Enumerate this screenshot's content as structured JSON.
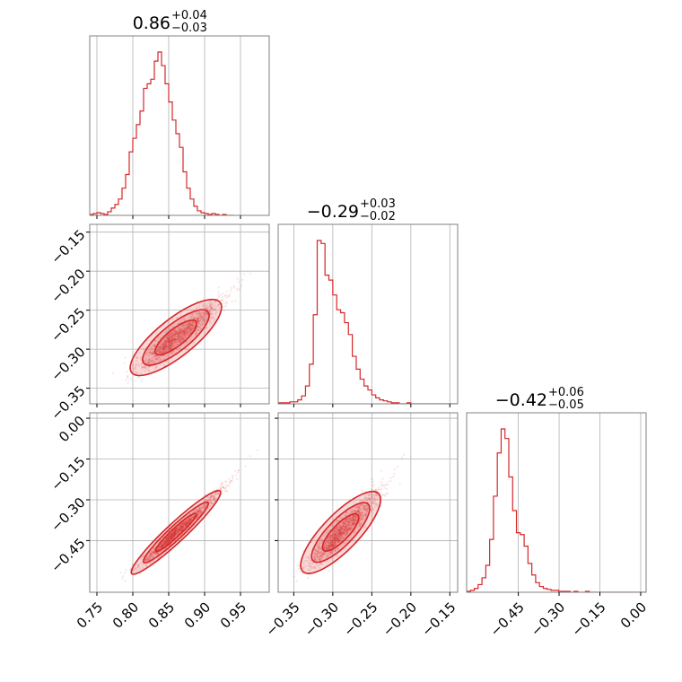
{
  "chart_data": {
    "type": "corner",
    "color": "#d62728",
    "grid": true,
    "parameters": [
      {
        "title_value": "0.86",
        "title_plus": "+0.04",
        "title_minus": "−0.03",
        "range": [
          0.74,
          0.99
        ],
        "ticks": [
          0.75,
          0.8,
          0.85,
          0.9,
          0.95
        ],
        "tick_labels": [
          "0.75",
          "0.80",
          "0.85",
          "0.90",
          "0.95"
        ],
        "hist": {
          "start": 0.74,
          "bin_width": 0.005,
          "counts": [
            1,
            2,
            3,
            2,
            1,
            4,
            8,
            12,
            18,
            30,
            45,
            70,
            85,
            100,
            115,
            140,
            145,
            150,
            170,
            180,
            165,
            145,
            125,
            105,
            90,
            75,
            48,
            30,
            18,
            10,
            5,
            3,
            2,
            1,
            2,
            1,
            0,
            1,
            0,
            0
          ]
        }
      },
      {
        "title_value": "−0.29",
        "title_plus": "+0.03",
        "title_minus": "−0.02",
        "range": [
          -0.37,
          -0.14
        ],
        "ticks": [
          -0.35,
          -0.3,
          -0.25,
          -0.2,
          -0.15
        ],
        "tick_labels": [
          "−0.35",
          "−0.30",
          "−0.25",
          "−0.20",
          "−0.15"
        ],
        "hist": {
          "start": -0.37,
          "bin_width": 0.005,
          "counts": [
            1,
            1,
            1,
            2,
            2,
            4,
            8,
            18,
            40,
            90,
            165,
            162,
            130,
            125,
            110,
            95,
            92,
            82,
            70,
            48,
            35,
            25,
            18,
            14,
            9,
            6,
            4,
            3,
            2,
            1,
            1,
            0,
            0,
            1,
            0,
            0,
            0,
            0,
            0,
            0,
            0,
            0,
            0,
            0,
            0,
            0
          ]
        }
      },
      {
        "title_value": "−0.42",
        "title_plus": "+0.06",
        "title_minus": "−0.05",
        "range": [
          -0.64,
          0.02
        ],
        "ticks": [
          -0.45,
          -0.3,
          -0.15,
          0.0
        ],
        "tick_labels": [
          "−0.45",
          "−0.30",
          "−0.15",
          "0.00"
        ],
        "y_ticks": [
          0.0,
          -0.15,
          -0.3,
          -0.45
        ],
        "y_tick_labels": [
          "0.00",
          "−0.15",
          "−0.30",
          "−0.45"
        ],
        "hist": {
          "start": -0.64,
          "bin_width": 0.0141,
          "counts": [
            1,
            2,
            4,
            8,
            15,
            28,
            55,
            100,
            145,
            170,
            160,
            120,
            85,
            62,
            60,
            48,
            30,
            18,
            10,
            6,
            4,
            3,
            2,
            2,
            1,
            1,
            1,
            0,
            1,
            0,
            0,
            1,
            0,
            0,
            0,
            0,
            0,
            0,
            0,
            0,
            0,
            0,
            0,
            0,
            0,
            0,
            0
          ]
        }
      }
    ]
  }
}
